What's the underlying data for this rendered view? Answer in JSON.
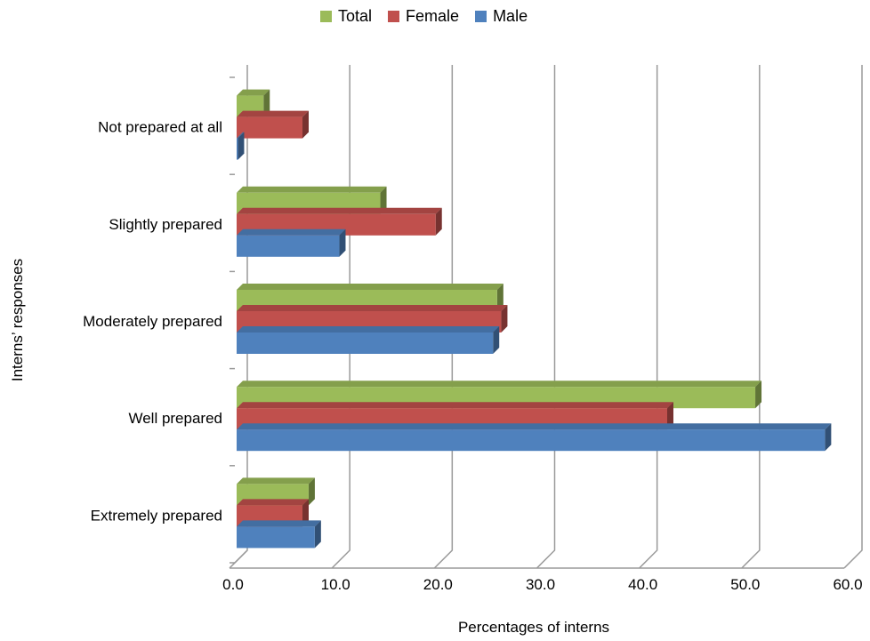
{
  "chart_data": {
    "type": "bar",
    "orientation": "horizontal",
    "style": "3d-clustered",
    "categories": [
      "Not prepared at all",
      "Slightly prepared",
      "Moderately prepared",
      "Well prepared",
      "Extremely prepared"
    ],
    "series": [
      {
        "name": "Total",
        "color": "#9BBB59",
        "values": [
          2.8,
          14.2,
          25.6,
          50.8,
          7.2
        ]
      },
      {
        "name": "Female",
        "color": "#C0504D",
        "values": [
          6.6,
          19.6,
          26.0,
          42.2,
          6.6
        ]
      },
      {
        "name": "Male",
        "color": "#4F81BD",
        "values": [
          0.3,
          10.2,
          25.2,
          57.6,
          7.8
        ]
      }
    ],
    "xlabel": "Percentages of interns",
    "ylabel": "Interns’ responses",
    "xlim": [
      0,
      60
    ],
    "xticks": [
      "0.0",
      "10.0",
      "20.0",
      "30.0",
      "40.0",
      "50.0",
      "60.0"
    ],
    "grid": true,
    "legend": {
      "placement": "top",
      "order": [
        "Total",
        "Female",
        "Male"
      ]
    }
  }
}
